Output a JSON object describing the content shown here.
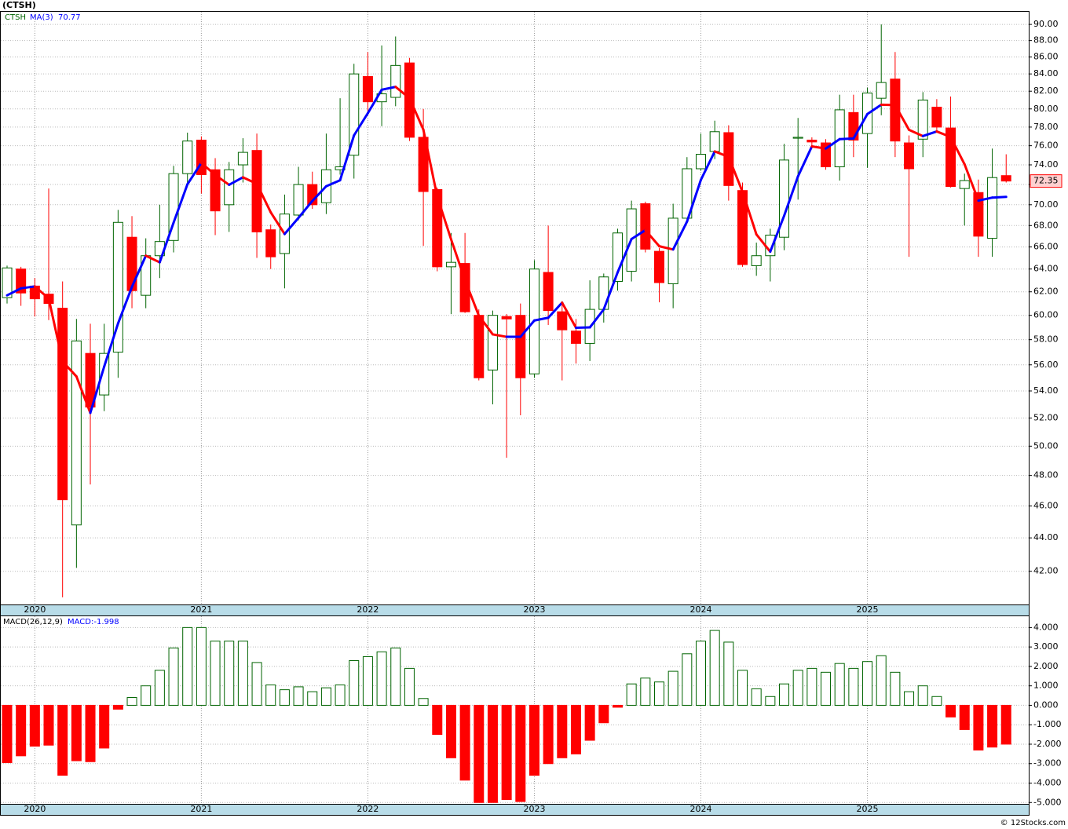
{
  "chart_data": [
    {
      "type": "candlestick",
      "title": "(CTSH)",
      "ticker": "CTSH",
      "log_scale": true,
      "grid": true,
      "up_color": "#006400",
      "down_color": "#ff0000",
      "categories": [
        null,
        null,
        "2020",
        null,
        null,
        null,
        null,
        null,
        null,
        null,
        null,
        null,
        null,
        null,
        "2021",
        null,
        null,
        null,
        null,
        null,
        null,
        null,
        null,
        null,
        null,
        null,
        "2022",
        null,
        null,
        null,
        null,
        null,
        null,
        null,
        null,
        null,
        null,
        null,
        "2023",
        null,
        null,
        null,
        null,
        null,
        null,
        null,
        null,
        null,
        null,
        null,
        "2024",
        null,
        null,
        null,
        null,
        null,
        null,
        null,
        null,
        null,
        null,
        null,
        "2025",
        null,
        null,
        null,
        null,
        null,
        null,
        null,
        null,
        null,
        null
      ],
      "open": [
        61.5,
        64.0,
        62.5,
        61.8,
        60.6,
        44.8,
        56.9,
        53.7,
        57.0,
        66.9,
        61.7,
        65.2,
        66.6,
        73.1,
        76.6,
        73.5,
        70.0,
        74.0,
        75.5,
        67.6,
        65.4,
        69.0,
        72.0,
        70.2,
        73.5,
        75.0,
        83.7,
        80.8,
        81.3,
        85.3,
        76.9,
        71.5,
        64.2,
        64.5,
        60.0,
        55.6,
        59.9,
        60.0,
        55.3,
        63.7,
        60.3,
        58.7,
        57.7,
        60.5,
        62.9,
        63.8,
        70.1,
        65.6,
        62.7,
        68.7,
        73.6,
        75.4,
        77.4,
        71.4,
        64.3,
        65.2,
        66.9,
        76.8,
        76.6,
        76.3,
        73.8,
        79.6,
        77.3,
        81.2,
        83.4,
        76.3,
        76.7,
        80.2,
        77.9,
        71.6,
        71.2,
        66.8,
        72.9
      ],
      "high": [
        64.3,
        64.2,
        63.2,
        71.6,
        62.9,
        59.7,
        59.3,
        59.3,
        69.5,
        68.9,
        66.8,
        70.0,
        73.9,
        77.4,
        77.0,
        74.7,
        74.3,
        76.8,
        77.3,
        68.1,
        71.0,
        73.8,
        73.3,
        77.3,
        81.2,
        85.2,
        86.6,
        87.4,
        88.5,
        85.9,
        80.0,
        71.7,
        67.3,
        67.3,
        60.5,
        60.4,
        60.1,
        61.0,
        64.8,
        68.0,
        61.2,
        59.7,
        63.0,
        63.6,
        67.7,
        70.4,
        70.3,
        65.9,
        70.1,
        74.8,
        77.3,
        78.7,
        78.2,
        72.2,
        66.4,
        67.7,
        76.2,
        79.0,
        76.9,
        76.7,
        81.6,
        81.6,
        82.4,
        90.0,
        86.6,
        77.1,
        81.9,
        81.1,
        81.4,
        73.1,
        72.5,
        75.7,
        75.1
      ],
      "low": [
        61.0,
        60.8,
        59.9,
        59.6,
        40.5,
        42.2,
        47.4,
        52.5,
        55.0,
        60.6,
        60.6,
        63.2,
        65.5,
        72.0,
        71.1,
        67.1,
        67.4,
        72.2,
        65.0,
        64.0,
        62.3,
        68.5,
        69.6,
        69.1,
        73.0,
        72.6,
        79.3,
        78.1,
        80.3,
        76.5,
        66.1,
        63.8,
        60.1,
        60.2,
        54.8,
        53.0,
        49.2,
        52.2,
        55.0,
        59.2,
        54.8,
        56.1,
        56.3,
        59.4,
        62.1,
        62.9,
        65.5,
        61.1,
        60.6,
        68.4,
        73.4,
        74.6,
        70.4,
        64.2,
        63.4,
        62.9,
        65.7,
        70.5,
        75.9,
        73.5,
        72.4,
        74.8,
        73.7,
        79.3,
        74.8,
        65.1,
        74.8,
        77.5,
        71.7,
        68.0,
        65.1,
        65.1,
        72.2
      ],
      "close": [
        64.1,
        61.9,
        61.4,
        61.0,
        46.4,
        57.9,
        52.8,
        56.9,
        68.3,
        62.1,
        65.2,
        66.5,
        73.1,
        76.5,
        73.0,
        69.4,
        73.5,
        75.3,
        67.4,
        65.1,
        69.1,
        72.0,
        70.0,
        73.5,
        73.8,
        84.0,
        80.8,
        81.7,
        85.0,
        76.9,
        71.3,
        64.2,
        64.6,
        60.3,
        55.0,
        60.0,
        59.7,
        55.0,
        64.0,
        60.4,
        58.8,
        57.7,
        60.5,
        63.3,
        67.3,
        69.6,
        65.8,
        62.8,
        68.7,
        73.6,
        75.1,
        77.5,
        71.9,
        64.4,
        65.2,
        67.1,
        74.5,
        76.9,
        76.4,
        73.8,
        79.9,
        76.6,
        81.8,
        83.0,
        76.5,
        73.6,
        81.0,
        78.0,
        71.8,
        72.4,
        67.0,
        72.7,
        72.35
      ],
      "ma": {
        "name": "MA(3)",
        "up_color": "#0000ff",
        "down_color": "#ff0000",
        "values": [
          61.7,
          62.3,
          62.47,
          61.43,
          56.27,
          55.1,
          52.37,
          55.87,
          59.33,
          62.43,
          65.2,
          64.6,
          68.27,
          72.03,
          74.2,
          72.97,
          71.97,
          72.73,
          72.07,
          69.27,
          67.2,
          68.73,
          70.37,
          71.83,
          72.43,
          77.1,
          79.53,
          82.17,
          82.5,
          81.2,
          77.73,
          70.8,
          66.7,
          63.03,
          59.97,
          58.43,
          58.23,
          58.23,
          59.57,
          59.8,
          61.07,
          58.97,
          59.0,
          60.5,
          63.7,
          66.73,
          67.57,
          66.07,
          65.77,
          68.37,
          72.47,
          75.4,
          74.83,
          71.27,
          67.17,
          65.57,
          68.93,
          72.83,
          75.93,
          75.7,
          76.7,
          76.77,
          79.43,
          80.47,
          80.43,
          77.7,
          77.03,
          77.53,
          76.93,
          74.07,
          70.4,
          70.7,
          70.77
        ]
      },
      "ylim": [
        40.1,
        91.6
      ],
      "yticks": [
        {
          "value": 42,
          "label": "42.00"
        },
        {
          "value": 44,
          "label": "44.00"
        },
        {
          "value": 46,
          "label": "46.00"
        },
        {
          "value": 48,
          "label": "48.00"
        },
        {
          "value": 50,
          "label": "50.00"
        },
        {
          "value": 52,
          "label": "52.00"
        },
        {
          "value": 54,
          "label": "54.00"
        },
        {
          "value": 56,
          "label": "56.00"
        },
        {
          "value": 58,
          "label": "58.00"
        },
        {
          "value": 60,
          "label": "60.00"
        },
        {
          "value": 62,
          "label": "62.00"
        },
        {
          "value": 64,
          "label": "64.00"
        },
        {
          "value": 66,
          "label": "66.00"
        },
        {
          "value": 68,
          "label": "68.00"
        },
        {
          "value": 70,
          "label": "70.00"
        },
        {
          "value": 72,
          "label": "72.00"
        },
        {
          "value": 74,
          "label": "74.00"
        },
        {
          "value": 76,
          "label": "76.00"
        },
        {
          "value": 78,
          "label": "78.00"
        },
        {
          "value": 80,
          "label": "80.00"
        },
        {
          "value": 82,
          "label": "82.00"
        },
        {
          "value": 84,
          "label": "84.00"
        },
        {
          "value": 86,
          "label": "86.00"
        },
        {
          "value": 88,
          "label": "88.00"
        },
        {
          "value": 90,
          "label": "90.00"
        }
      ]
    },
    {
      "type": "bar",
      "name": "MACD(26,12,9)",
      "value_name": "MACD:",
      "grid": true,
      "up_color": "#006400",
      "down_color": "#ff0000",
      "values": [
        -2.95,
        -2.6,
        -2.1,
        -2.05,
        -3.6,
        -2.85,
        -2.9,
        -2.2,
        -0.2,
        0.4,
        1.0,
        1.8,
        2.95,
        4.0,
        4.0,
        3.3,
        3.3,
        3.3,
        2.2,
        1.05,
        0.8,
        0.95,
        0.7,
        0.9,
        1.05,
        2.3,
        2.5,
        2.75,
        2.95,
        1.9,
        0.35,
        -1.5,
        -2.7,
        -3.85,
        -5.0,
        -5.0,
        -4.85,
        -4.95,
        -3.6,
        -3.0,
        -2.7,
        -2.5,
        -1.8,
        -0.9,
        -0.1,
        1.1,
        1.4,
        1.2,
        1.75,
        2.65,
        3.3,
        3.85,
        3.25,
        1.8,
        0.85,
        0.45,
        1.1,
        1.8,
        1.9,
        1.7,
        2.15,
        1.9,
        2.25,
        2.55,
        1.7,
        0.7,
        1.0,
        0.45,
        -0.6,
        -1.25,
        -2.3,
        -2.15,
        -1.998
      ],
      "ylim": [
        -5.07,
        4.58
      ],
      "yticks": [
        {
          "value": -5,
          "label": "-5.000"
        },
        {
          "value": -4,
          "label": "-4.000"
        },
        {
          "value": -3,
          "label": "-3.000"
        },
        {
          "value": -2,
          "label": "-2.000"
        },
        {
          "value": -1,
          "label": "-1.000"
        },
        {
          "value": 0,
          "label": "0.000"
        },
        {
          "value": 1,
          "label": "1.000"
        },
        {
          "value": 2,
          "label": "2.000"
        },
        {
          "value": 3,
          "label": "3.000"
        },
        {
          "value": 4,
          "label": "4.000"
        }
      ]
    }
  ],
  "footer": "© 12Stocks.com"
}
